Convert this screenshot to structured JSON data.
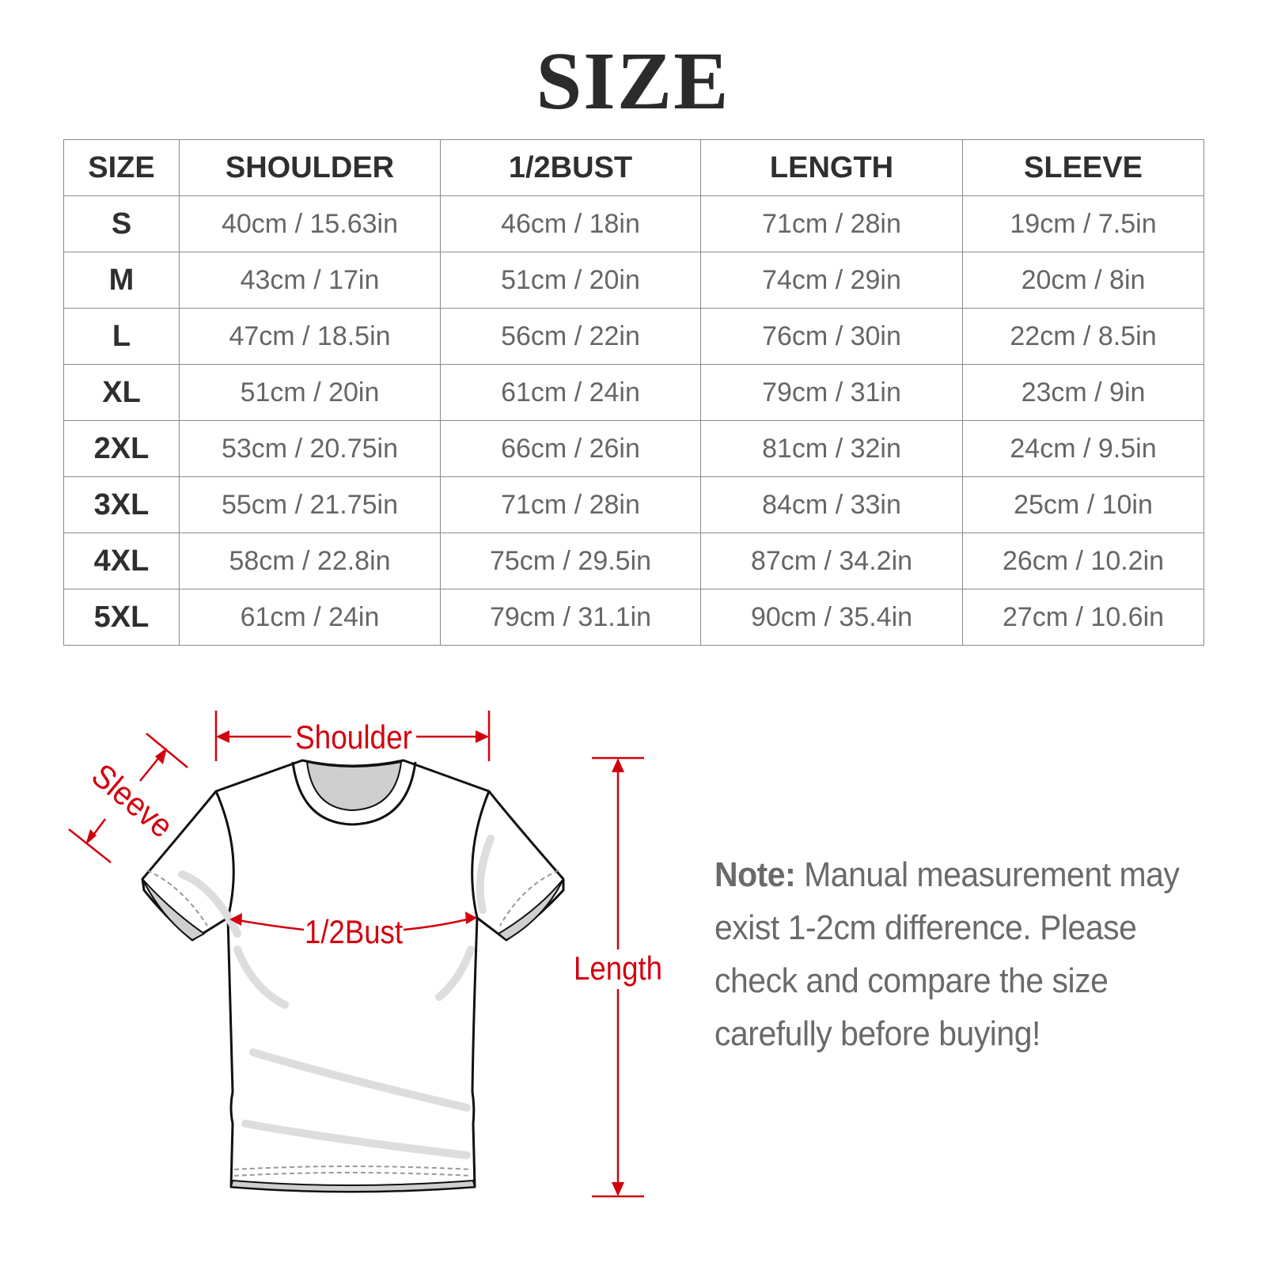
{
  "title": "SIZE",
  "table": {
    "headers": [
      "SIZE",
      "SHOULDER",
      "1/2BUST",
      "LENGTH",
      "SLEEVE"
    ],
    "rows": [
      [
        "S",
        "40cm / 15.63in",
        "46cm / 18in",
        "71cm / 28in",
        "19cm / 7.5in"
      ],
      [
        "M",
        "43cm / 17in",
        "51cm / 20in",
        "74cm / 29in",
        "20cm / 8in"
      ],
      [
        "L",
        "47cm / 18.5in",
        "56cm / 22in",
        "76cm / 30in",
        "22cm / 8.5in"
      ],
      [
        "XL",
        "51cm / 20in",
        "61cm / 24in",
        "79cm / 31in",
        "23cm / 9in"
      ],
      [
        "2XL",
        "53cm / 20.75in",
        "66cm / 26in",
        "81cm / 32in",
        "24cm / 9.5in"
      ],
      [
        "3XL",
        "55cm / 21.75in",
        "71cm / 28in",
        "84cm / 33in",
        "25cm / 10in"
      ],
      [
        "4XL",
        "58cm / 22.8in",
        "75cm / 29.5in",
        "87cm / 34.2in",
        "26cm / 10.2in"
      ],
      [
        "5XL",
        "61cm / 24in",
        "79cm / 31.1in",
        "90cm / 35.4in",
        "27cm / 10.6in"
      ]
    ]
  },
  "diagram": {
    "shoulder_label": "Shoulder",
    "sleeve_label": "Sleeve",
    "bust_label": "1/2Bust",
    "length_label": "Length",
    "accent_color": "#d2000f"
  },
  "note": {
    "label": "Note:",
    "text": "Manual measurement may exist 1-2cm difference. Please check and compare the size carefully before buying!"
  }
}
